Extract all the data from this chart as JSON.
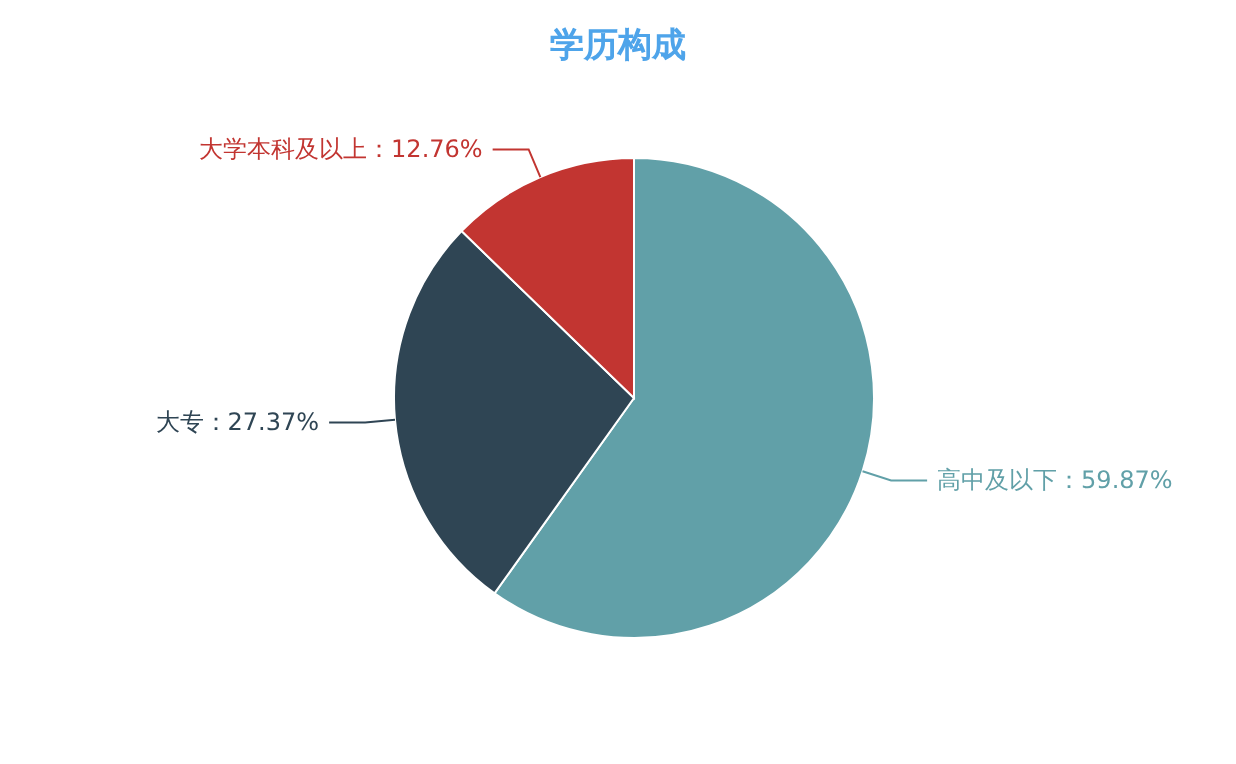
{
  "chart_data": {
    "type": "pie",
    "title": "学历构成",
    "categories": [
      "高中及以下",
      "大专",
      "大学本科及以上"
    ],
    "values": [
      59.87,
      27.37,
      12.76
    ],
    "colors": [
      "#61a0a8",
      "#2f4554",
      "#c23531"
    ],
    "value_labels": [
      "59.87%",
      "27.37%",
      "12.76%"
    ]
  }
}
